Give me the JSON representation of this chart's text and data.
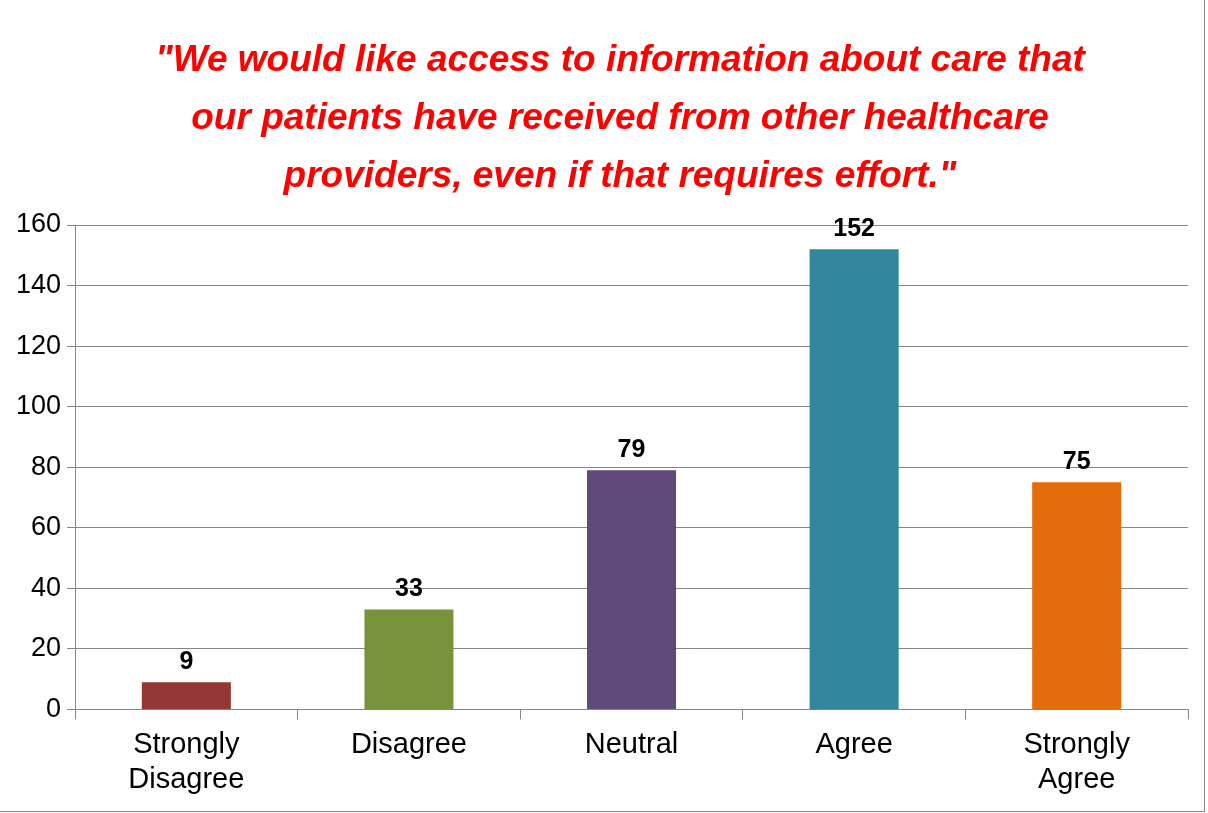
{
  "chart_data": {
    "type": "bar",
    "title": "\"We would like access to information about care that our patients have received from other healthcare providers, even if that requires effort.\"",
    "categories": [
      "Strongly Disagree",
      "Disagree",
      "Neutral",
      "Agree",
      "Strongly Agree"
    ],
    "values": [
      9,
      33,
      79,
      152,
      75
    ],
    "colors": [
      "#953735",
      "#77933c",
      "#604a7b",
      "#31859c",
      "#e46c0a"
    ],
    "ylim": [
      0,
      160
    ],
    "yticks": [
      0,
      20,
      40,
      60,
      80,
      100,
      120,
      140,
      160
    ],
    "grid": "y",
    "legend": false,
    "data_labels": true
  }
}
